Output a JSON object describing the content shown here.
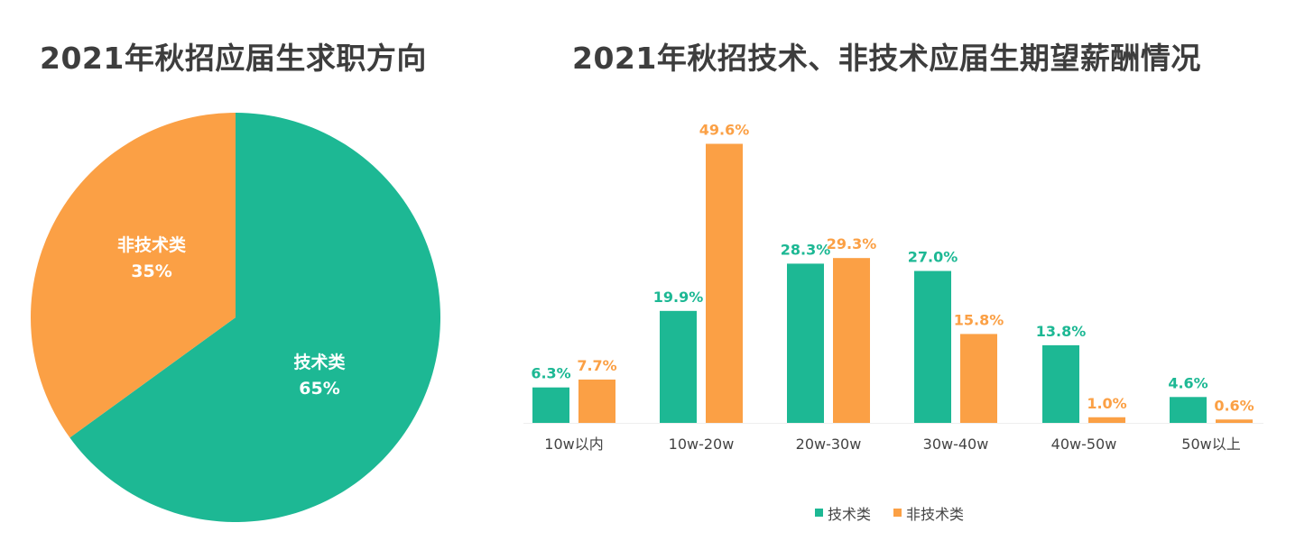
{
  "colors": {
    "tech": "#1db894",
    "nontech": "#fba045"
  },
  "chart_data": [
    {
      "type": "pie",
      "title": "2021年秋招应届生求职方向",
      "slices": [
        {
          "label": "技术类",
          "pct_label": "65%",
          "value": 65
        },
        {
          "label": "非技术类",
          "pct_label": "35%",
          "value": 35
        }
      ]
    },
    {
      "type": "bar",
      "title": "2021年秋招技术、非技术应届生期望薪酬情况",
      "categories": [
        "10w以内",
        "10w-20w",
        "20w-30w",
        "30w-40w",
        "40w-50w",
        "50w以上"
      ],
      "series": [
        {
          "name": "技术类",
          "values": [
            6.3,
            19.9,
            28.3,
            27.0,
            13.8,
            4.6
          ],
          "labels": [
            "6.3%",
            "19.9%",
            "28.3%",
            "27.0%",
            "13.8%",
            "4.6%"
          ]
        },
        {
          "name": "非技术类",
          "values": [
            7.7,
            49.6,
            29.3,
            15.8,
            1.0,
            0.6
          ],
          "labels": [
            "7.7%",
            "49.6%",
            "29.3%",
            "15.8%",
            "1.0%",
            "0.6%"
          ]
        }
      ],
      "legend_position": "bottom"
    }
  ]
}
